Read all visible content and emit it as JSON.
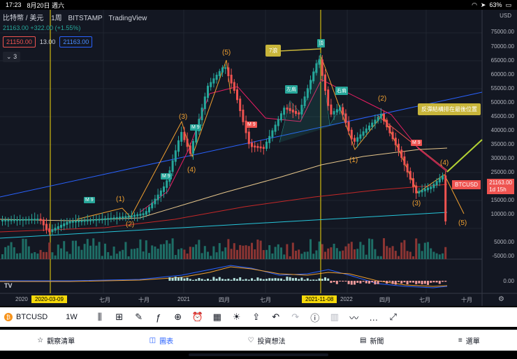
{
  "status": {
    "time": "17:23",
    "date": "8月20日 週六",
    "battery": "63%"
  },
  "header": {
    "title": "比特幣 / 美元",
    "interval": "1周",
    "exchange": "BITSTAMP",
    "source": "TradingView"
  },
  "price_line": "21163.00 +322.00 (+1.55%)",
  "sell_price": "21150.00",
  "spread": "13.00",
  "buy_price": "21163.00",
  "indicator_count": "3",
  "currency": "USD",
  "y_axis": {
    "price_ticks": [
      "75000.00",
      "70000.00",
      "65000.00",
      "60000.00",
      "55000.00",
      "50000.00",
      "45000.00",
      "40000.00",
      "35000.00",
      "30000.00",
      "25000.00",
      "21163.00",
      "15000.00",
      "10000.00",
      "5000.00",
      "-5000.00",
      "-10000.00",
      "0.00"
    ]
  },
  "last_price_tag": {
    "symbol": "BTCUSD",
    "price": "21163.00",
    "countdown": "1d 15h"
  },
  "annotations": {
    "wave7": "7浪",
    "top": "頂",
    "left_shoulder": "左肩",
    "right_shoulder": "右肩",
    "note": "反彈結構排在最後位置",
    "waves": [
      "(1)",
      "(2)",
      "(3)",
      "(4)",
      "(5)",
      "(5)",
      "(1)",
      "(2)",
      "(3)",
      "(4)",
      "(5)",
      "(4)",
      "(3)"
    ],
    "m9": "M 9"
  },
  "x_axis": [
    "2020",
    "2020-03-09",
    "七月",
    "十月",
    "2021",
    "四月",
    "七月",
    "2021-11-08",
    "2022",
    "四月",
    "七月",
    "十月"
  ],
  "toolbar": {
    "symbol": "BTCUSD",
    "interval": "1W"
  },
  "nav": [
    {
      "label": "觀察清單",
      "icon": "star-icon"
    },
    {
      "label": "圖表",
      "icon": "chart-icon"
    },
    {
      "label": "投資想法",
      "icon": "lightbulb-icon"
    },
    {
      "label": "新聞",
      "icon": "news-icon"
    },
    {
      "label": "選單",
      "icon": "menu-icon"
    }
  ]
}
